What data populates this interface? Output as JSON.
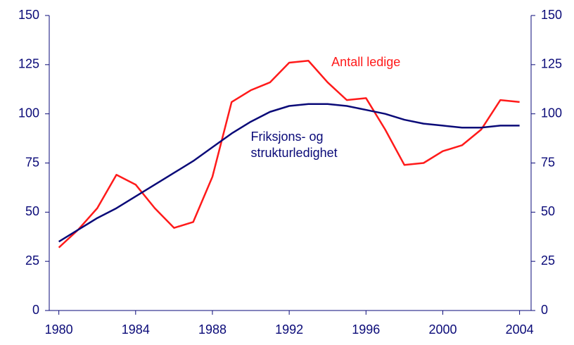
{
  "chart_data": {
    "type": "line",
    "x": [
      1980,
      1981,
      1982,
      1983,
      1984,
      1985,
      1986,
      1987,
      1988,
      1989,
      1990,
      1991,
      1992,
      1993,
      1994,
      1995,
      1996,
      1997,
      1998,
      1999,
      2000,
      2001,
      2002,
      2003,
      2004
    ],
    "series": [
      {
        "name": "Antall ledige",
        "color": "#ff1a1a",
        "values": [
          32,
          41,
          52,
          69,
          64,
          52,
          42,
          45,
          68,
          106,
          112,
          116,
          126,
          127,
          116,
          107,
          108,
          92,
          74,
          75,
          81,
          84,
          92,
          107,
          106
        ]
      },
      {
        "name": "Friksjons- og strukturledighet",
        "color": "#0a0a78",
        "values": [
          35,
          41,
          47,
          52,
          58,
          64,
          70,
          76,
          83,
          90,
          96,
          101,
          104,
          105,
          105,
          104,
          102,
          100,
          97,
          95,
          94,
          93,
          93,
          94,
          94
        ]
      }
    ],
    "annotations": [
      {
        "lines": [
          "Antall ledige"
        ],
        "x": 1994.2,
        "y": 126,
        "color": "#ff1a1a"
      },
      {
        "lines": [
          "Friksjons- og",
          "strukturledighet"
        ],
        "x": 1990,
        "y": 88,
        "color": "#0a0a78"
      }
    ],
    "xlim": [
      1979.5,
      2004.6
    ],
    "xticks": [
      1980,
      1984,
      1988,
      1992,
      1996,
      2000,
      2004
    ],
    "ylim": [
      0,
      150
    ],
    "yticks": [
      0,
      25,
      50,
      75,
      100,
      125,
      150
    ],
    "y2lim": [
      0,
      150
    ],
    "y2ticks": [
      0,
      25,
      50,
      75,
      100,
      125,
      150
    ]
  }
}
